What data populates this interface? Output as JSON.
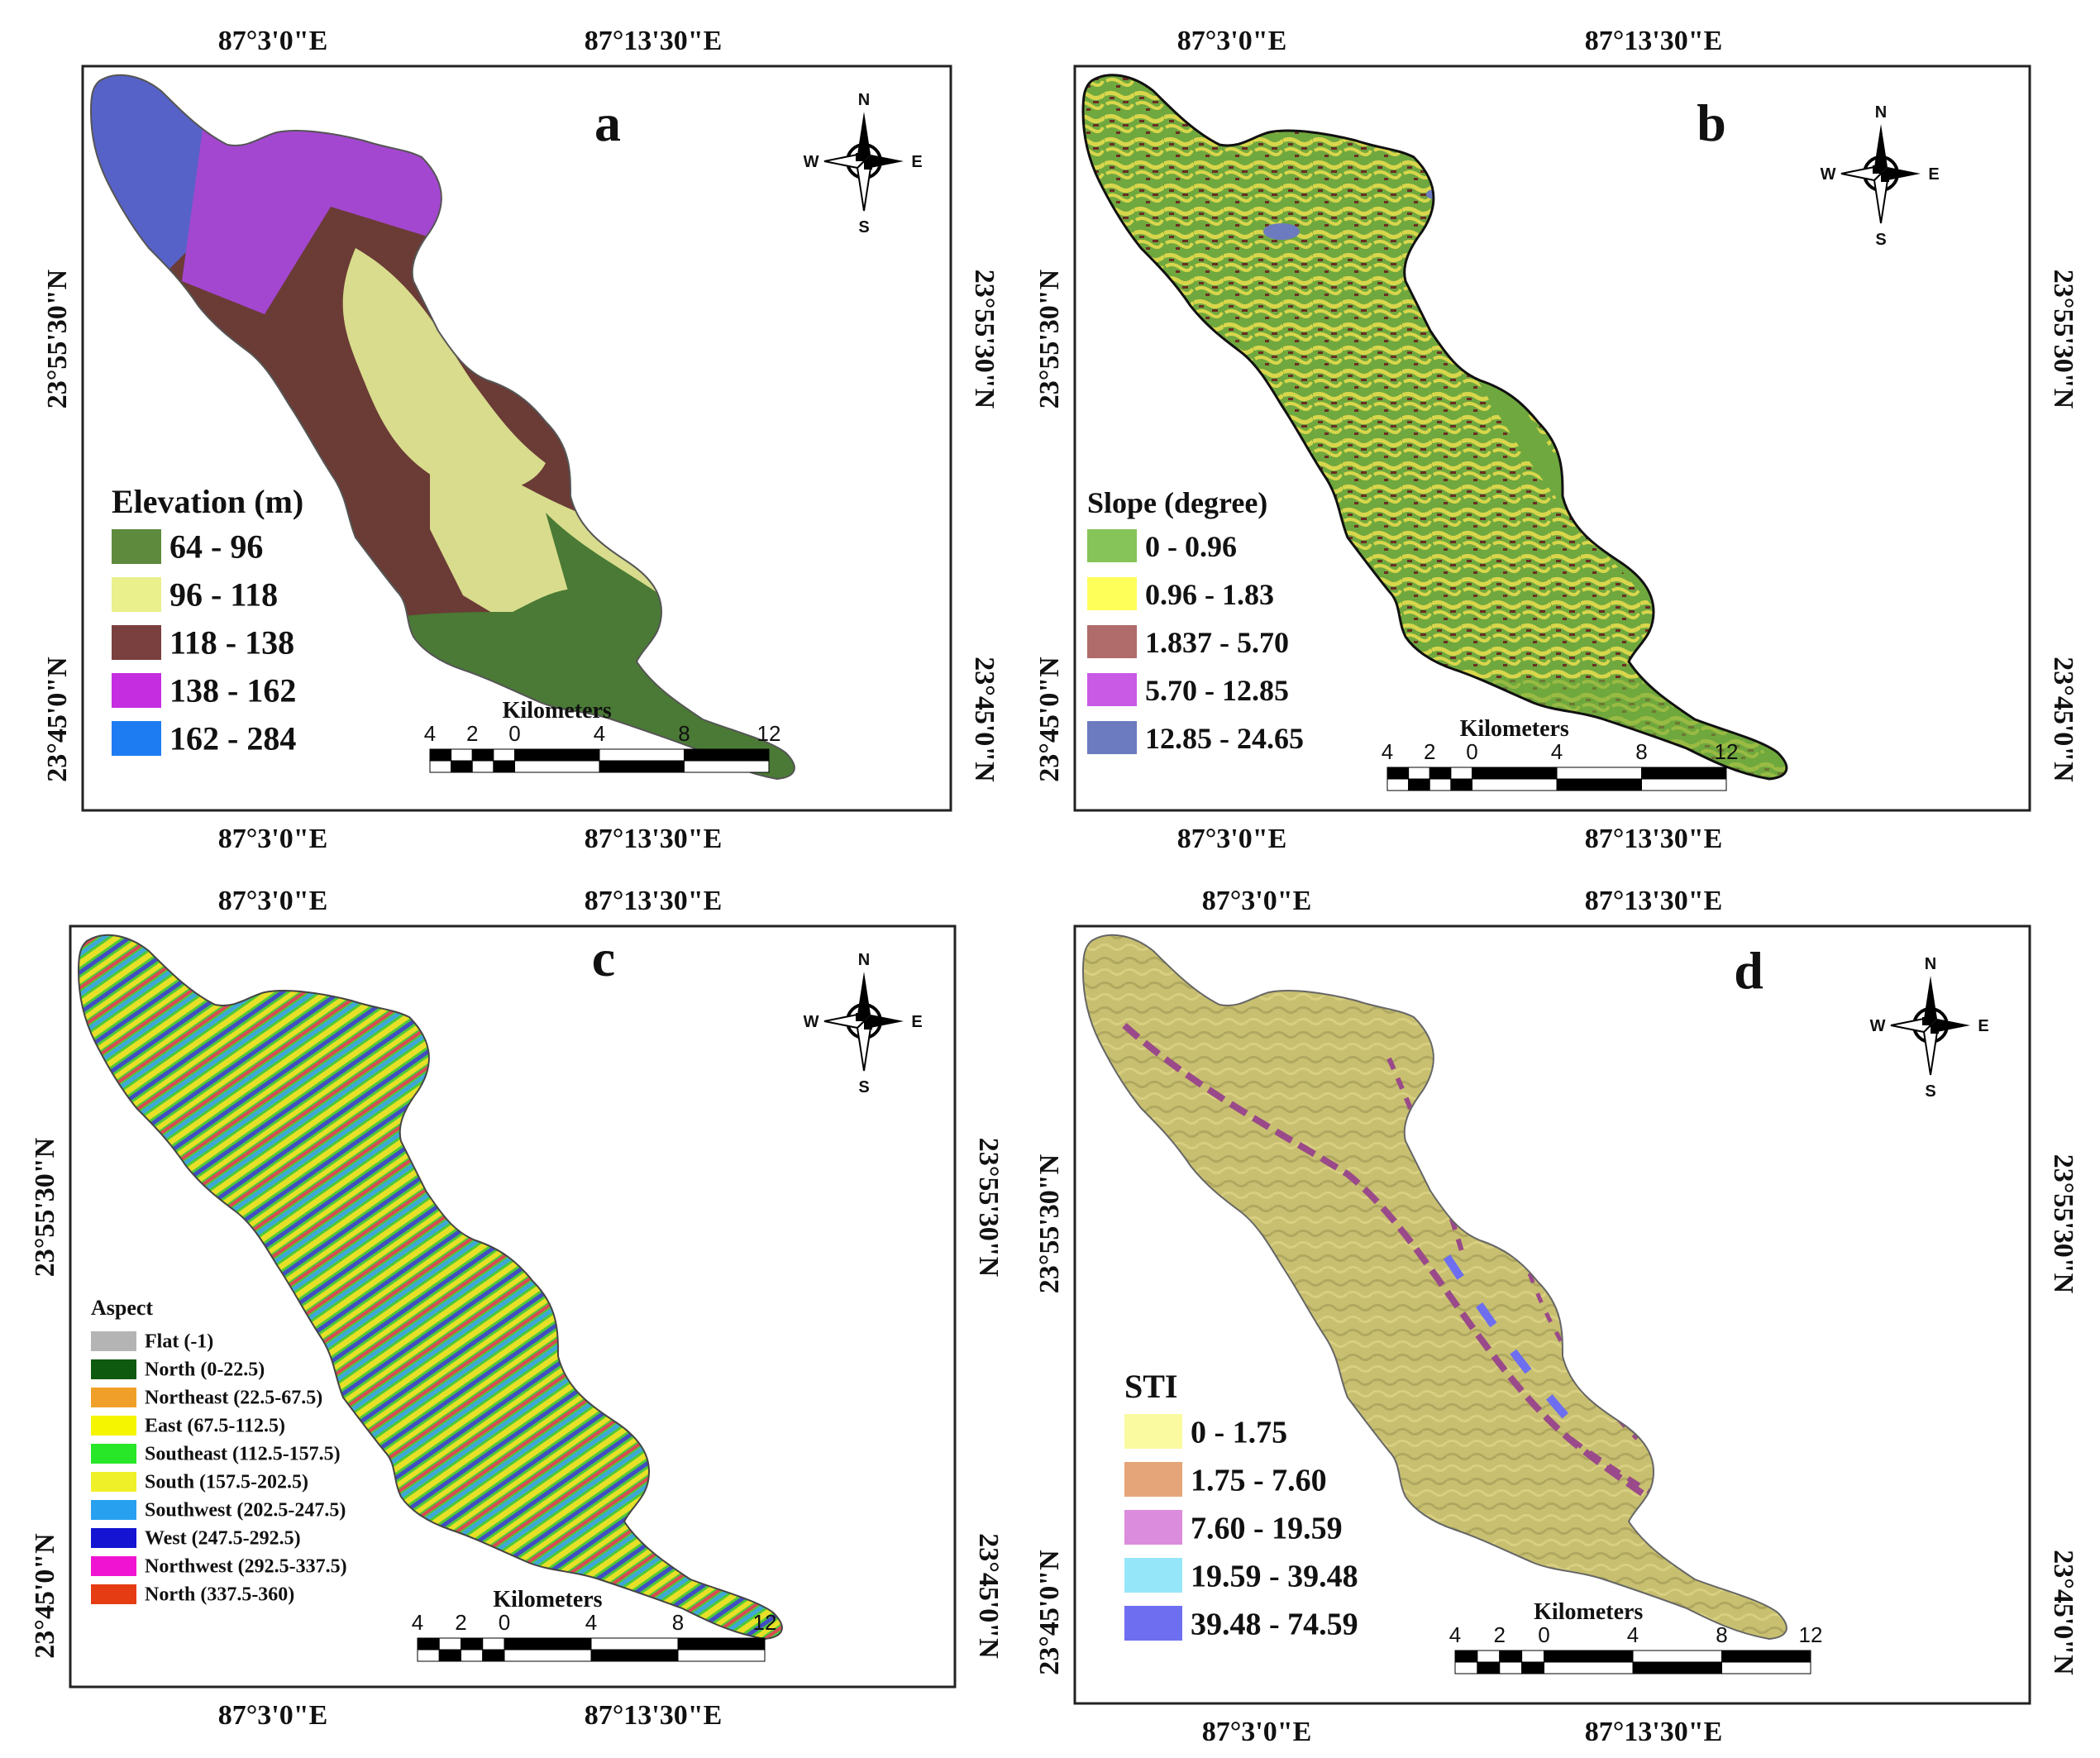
{
  "colors": {
    "frame": "#222222",
    "elev_low": "#4a7a35",
    "elev_96": "#d8dc8c",
    "elev_118": "#6b3b36",
    "elev_138": "#a347d0",
    "elev_162": "#5662c8",
    "slope_base": "#6fa83e",
    "slope_yellow": "#d8d64c",
    "slope_brown": "#6c2e22",
    "aspect_a": "#3ac63a",
    "aspect_b": "#e8e028",
    "aspect_c": "#2c3ad8",
    "aspect_d": "#d8365a",
    "sti_base": "#c8c070",
    "sti_stream": "#9a4a8a"
  },
  "panels": [
    {
      "label": "a",
      "lon_top": [
        "87°3'0\"E",
        "87°13'30\"E"
      ],
      "lon_bottom": [
        "87°3'0\"E",
        "87°13'30\"E"
      ],
      "lat_left": [
        "23°55'30\"N",
        "23°45'0\"N"
      ],
      "lat_right": [
        "23°55'30\"N",
        "23°45'0\"N"
      ],
      "legend_title": "Elevation (m)",
      "legend": [
        {
          "label": "64 - 96",
          "color": "#5e8a3e"
        },
        {
          "label": "96 - 118",
          "color": "#eaf08c"
        },
        {
          "label": "118 - 138",
          "color": "#7a3f3f"
        },
        {
          "label": "138 - 162",
          "color": "#c42de0"
        },
        {
          "label": "162 - 284",
          "color": "#1e7cf2"
        }
      ],
      "scale_title": "Kilometers",
      "scale_ticks": [
        "4",
        "2",
        "0",
        "4",
        "8",
        "12"
      ],
      "compass": [
        "N",
        "S",
        "W",
        "E"
      ]
    },
    {
      "label": "b",
      "lon_top": [
        "87°3'0\"E",
        "87°13'30\"E"
      ],
      "lon_bottom": [
        "87°3'0\"E",
        "87°13'30\"E"
      ],
      "lat_left": [
        "23°55'30\"N",
        "23°45'0\"N"
      ],
      "lat_right": [
        "23°55'30\"N",
        "23°45'0\"N"
      ],
      "legend_title": "Slope (degree)",
      "legend": [
        {
          "label": "0 - 0.96",
          "color": "#86c45a"
        },
        {
          "label": "0.96 - 1.83",
          "color": "#ffff5a"
        },
        {
          "label": "1.837 - 5.70",
          "color": "#b06b6b"
        },
        {
          "label": "5.70 - 12.85",
          "color": "#c85ae6"
        },
        {
          "label": "12.85 - 24.65",
          "color": "#6c7ac0"
        }
      ],
      "scale_title": "Kilometers",
      "scale_ticks": [
        "4",
        "2",
        "0",
        "4",
        "8",
        "12"
      ],
      "compass": [
        "N",
        "S",
        "W",
        "E"
      ]
    },
    {
      "label": "c",
      "lon_top": [
        "87°3'0\"E",
        "87°13'30\"E"
      ],
      "lon_bottom": [
        "87°3'0\"E",
        "87°13'30\"E"
      ],
      "lat_left": [
        "23°55'30\"N",
        "23°45'0\"N"
      ],
      "lat_right": [
        "23°55'30\"N",
        "23°45'0\"N"
      ],
      "legend_title": "Aspect",
      "legend": [
        {
          "label": "Flat (-1)",
          "color": "#b4b4b4"
        },
        {
          "label": "North (0-22.5)",
          "color": "#0e5a0e"
        },
        {
          "label": "Northeast (22.5-67.5)",
          "color": "#f0a028"
        },
        {
          "label": "East (67.5-112.5)",
          "color": "#f5f500"
        },
        {
          "label": "Southeast (112.5-157.5)",
          "color": "#28e628"
        },
        {
          "label": "South (157.5-202.5)",
          "color": "#f0f028"
        },
        {
          "label": "Southwest (202.5-247.5)",
          "color": "#28a0f0"
        },
        {
          "label": "West (247.5-292.5)",
          "color": "#1414d2"
        },
        {
          "label": "Northwest (292.5-337.5)",
          "color": "#f014d2"
        },
        {
          "label": "North (337.5-360)",
          "color": "#e63c14"
        }
      ],
      "scale_title": "Kilometers",
      "scale_ticks": [
        "4",
        "2",
        "0",
        "4",
        "8",
        "12"
      ],
      "compass": [
        "N",
        "S",
        "W",
        "E"
      ]
    },
    {
      "label": "d",
      "lon_top": [
        "87°3'0\"E",
        "87°13'30\"E"
      ],
      "lon_bottom": [
        "87°3'0\"E",
        "87°13'30\"E"
      ],
      "lat_left": [
        "23°55'30\"N",
        "23°45'0\"N"
      ],
      "lat_right": [
        "23°55'30\"N",
        "23°45'0\"N"
      ],
      "legend_title": "STI",
      "legend": [
        {
          "label": "0 - 1.75",
          "color": "#fafaa0"
        },
        {
          "label": "1.75 - 7.60",
          "color": "#e6a578"
        },
        {
          "label": "7.60 - 19.59",
          "color": "#dc8cdc"
        },
        {
          "label": "19.59 - 39.48",
          "color": "#96e6fa"
        },
        {
          "label": "39.48 - 74.59",
          "color": "#6e6ef0"
        }
      ],
      "scale_title": "Kilometers",
      "scale_ticks": [
        "4",
        "2",
        "0",
        "4",
        "8",
        "12"
      ],
      "compass": [
        "N",
        "S",
        "W",
        "E"
      ]
    }
  ]
}
